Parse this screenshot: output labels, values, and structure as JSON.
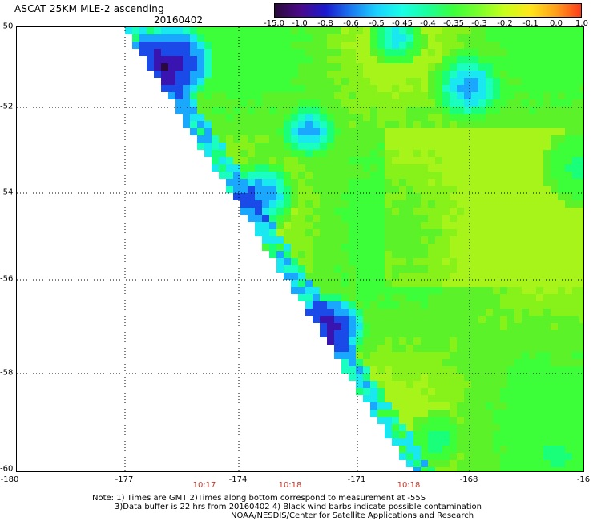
{
  "header": {
    "title": "ASCAT 25KM MLE-2 ascending",
    "date": "20160402"
  },
  "colorbar": {
    "labels": [
      "-15.0",
      "-1.0",
      "-0.8",
      "-0.6",
      "-0.5",
      "-0.45",
      "-0.4",
      "-0.35",
      "-0.3",
      "-0.2",
      "-0.1",
      "0.0",
      "1.0"
    ],
    "colors": [
      "#2a0a3a",
      "#4a0a8a",
      "#1a1ad0",
      "#1a7af0",
      "#1ad2ff",
      "#1affe6",
      "#1aff9a",
      "#3aff3a",
      "#7aff2a",
      "#c8ff1a",
      "#ffe61a",
      "#ffa01a",
      "#ff3a1a"
    ]
  },
  "axes": {
    "lat_ticks": [
      "-50",
      "-52",
      "-54",
      "-56",
      "-58",
      "-60"
    ],
    "lon_ticks": [
      "-180",
      "-177",
      "-174",
      "-171",
      "-168",
      "-16"
    ]
  },
  "times": [
    "10:17",
    "10:18",
    "10:18"
  ],
  "notes": {
    "line1": "Note: 1) Times are GMT 2)Times along bottom correspond to measurement at -55S",
    "line2": "3)Data buffer is 22 hrs from 20160402 4) Black wind barbs indicate possible contamination",
    "line3": "NOAA/NESDIS/Center for Satellite Applications and Research"
  }
}
